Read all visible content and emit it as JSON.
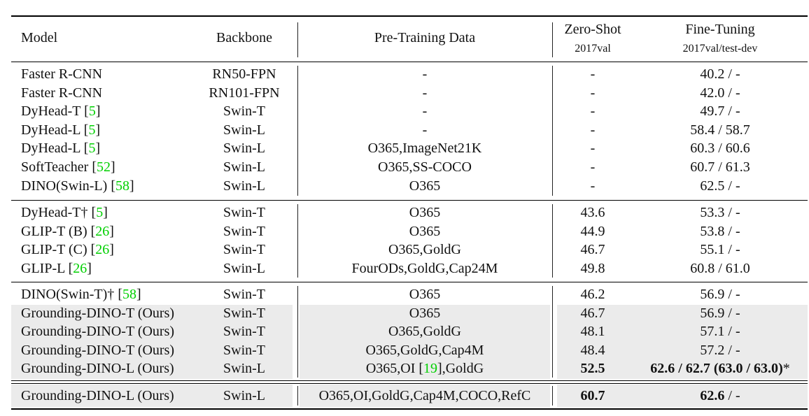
{
  "header": {
    "model": "Model",
    "backbone": "Backbone",
    "pretrain": "Pre-Training Data",
    "zeroshot": "Zero-Shot",
    "zeroshot_sub": "2017val",
    "finetune": "Fine-Tuning",
    "finetune_sub": "2017val/test-dev"
  },
  "groups": [
    {
      "shaded": false,
      "rows": [
        {
          "model": "Faster R-CNN",
          "cite": "",
          "backbone": "RN50-FPN",
          "data": "-",
          "data_cite": "",
          "zs": "-",
          "ft": "40.2 / -"
        },
        {
          "model": "Faster R-CNN",
          "cite": "",
          "backbone": "RN101-FPN",
          "data": "-",
          "data_cite": "",
          "zs": "-",
          "ft": "42.0 / -"
        },
        {
          "model": "DyHead-T",
          "cite": "5",
          "backbone": "Swin-T",
          "data": "-",
          "data_cite": "",
          "zs": "-",
          "ft": "49.7 / -"
        },
        {
          "model": "DyHead-L",
          "cite": "5",
          "backbone": "Swin-L",
          "data": "-",
          "data_cite": "",
          "zs": "-",
          "ft": "58.4 / 58.7"
        },
        {
          "model": "DyHead-L",
          "cite": "5",
          "backbone": "Swin-L",
          "data": "O365,ImageNet21K",
          "data_cite": "",
          "zs": "-",
          "ft": "60.3 / 60.6"
        },
        {
          "model": "SoftTeacher",
          "cite": "52",
          "backbone": "Swin-L",
          "data": "O365,SS-COCO",
          "data_cite": "",
          "zs": "-",
          "ft": "60.7 / 61.3"
        },
        {
          "model": "DINO(Swin-L)",
          "cite": "58",
          "backbone": "Swin-L",
          "data": "O365",
          "data_cite": "",
          "zs": "-",
          "ft": "62.5 / -"
        }
      ]
    },
    {
      "shaded": false,
      "rows": [
        {
          "model": "DyHead-T†",
          "cite": "5",
          "backbone": "Swin-T",
          "data": "O365",
          "data_cite": "",
          "zs": "43.6",
          "ft": "53.3 / -"
        },
        {
          "model": "GLIP-T (B)",
          "cite": "26",
          "backbone": "Swin-T",
          "data": "O365",
          "data_cite": "",
          "zs": "44.9",
          "ft": "53.8 / -"
        },
        {
          "model": "GLIP-T (C)",
          "cite": "26",
          "backbone": "Swin-T",
          "data": "O365,GoldG",
          "data_cite": "",
          "zs": "46.7",
          "ft": "55.1 / -"
        },
        {
          "model": "GLIP-L",
          "cite": "26",
          "backbone": "Swin-L",
          "data": "FourODs,GoldG,Cap24M",
          "data_cite": "",
          "zs": "49.8",
          "ft": "60.8 / 61.0"
        }
      ]
    },
    {
      "shaded": false,
      "rows": [
        {
          "model": "DINO(Swin-T)†",
          "cite": "58",
          "backbone": "Swin-T",
          "data": "O365",
          "data_cite": "",
          "zs": "46.2",
          "ft": "56.9 / -"
        },
        {
          "model": "Grounding-DINO-T (Ours)",
          "cite": "",
          "backbone": "Swin-T",
          "data": "O365",
          "data_cite": "",
          "zs": "46.7",
          "ft": "56.9 / -",
          "shaded": true
        },
        {
          "model": "Grounding-DINO-T (Ours)",
          "cite": "",
          "backbone": "Swin-T",
          "data": "O365,GoldG",
          "data_cite": "",
          "zs": "48.1",
          "ft": "57.1 / -",
          "shaded": true
        },
        {
          "model": "Grounding-DINO-T (Ours)",
          "cite": "",
          "backbone": "Swin-T",
          "data": "O365,GoldG,Cap4M",
          "data_cite": "",
          "zs": "48.4",
          "ft": "57.2 / -",
          "shaded": true
        },
        {
          "model": "Grounding-DINO-L (Ours)",
          "cite": "",
          "backbone": "Swin-L",
          "data": "O365,OI",
          "data_cite": "19",
          "data_after": ",GoldG",
          "zs": "52.5",
          "zs_bold": true,
          "ft_bold": "62.6 / 62.7",
          "ft_paren_bold": "63.0 / 63.0",
          "ft_suffix": "*",
          "shaded": true
        }
      ]
    },
    {
      "shaded": true,
      "rows": [
        {
          "model": "Grounding-DINO-L (Ours)",
          "cite": "",
          "backbone": "Swin-L",
          "data": "O365,OI,GoldG,Cap4M,COCO,RefC",
          "data_cite": "",
          "zs": "60.7",
          "zs_bold": true,
          "ft_bold": "62.6",
          "ft_rest": " / -"
        }
      ]
    }
  ]
}
